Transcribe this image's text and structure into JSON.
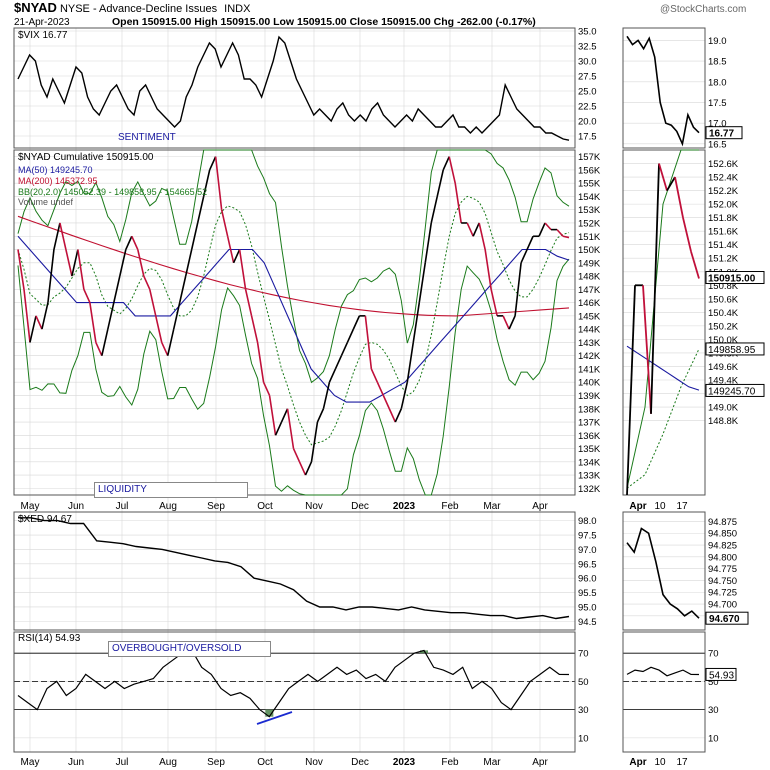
{
  "header": {
    "symbol": "$NYAD",
    "exchange": "NYSE - Advance-Decline Issues",
    "type": "INDX",
    "date": "21-Apr-2023",
    "ohlc": "Open 150915.00  High 150915.00  Low 150915.00  Close 150915.00  Chg -262.00 (-0.17%)",
    "watermark": "@StockCharts.com"
  },
  "colors": {
    "price": "#000000",
    "decline": "#c0103a",
    "ma50": "#1a1aa0",
    "ma200": "#c01030",
    "bb": "#1a7a1a",
    "grid": "#d8d8d8",
    "rsi_fill": "#3d7a3d",
    "trend": "#1a2ad0"
  },
  "labels": {
    "sentiment": "SENTIMENT",
    "liquidity": "LIQUIDITY",
    "overbought": "OVERBOUGHT/OVERSOLD"
  },
  "chart_data": [
    {
      "type": "line",
      "panel": "vix",
      "legend": "$VIX 16.77",
      "last_value": "16.77",
      "ylim": [
        15.5,
        35.5
      ],
      "y_ticks": [
        "35.0",
        "32.5",
        "30.0",
        "27.5",
        "25.0",
        "22.5",
        "20.0",
        "17.5"
      ],
      "values": [
        27,
        29,
        31,
        30,
        26,
        24,
        27,
        25,
        23,
        26,
        29,
        28,
        24,
        22,
        21,
        23,
        25,
        26,
        24,
        22,
        21,
        25,
        26,
        24,
        22,
        21,
        20,
        19,
        20,
        24,
        26,
        29,
        31,
        33,
        32,
        29,
        31,
        33,
        31,
        27,
        27,
        26,
        24,
        27,
        30,
        34,
        33,
        30,
        27,
        25,
        23,
        21,
        22,
        21,
        20,
        22,
        23,
        21,
        20,
        21,
        20,
        22,
        23,
        21,
        20,
        19,
        20,
        21,
        20,
        22,
        21,
        20,
        19,
        19,
        20,
        21,
        19,
        19,
        18,
        19,
        18,
        19,
        20,
        21,
        26,
        24,
        22,
        21,
        20,
        19,
        19,
        18,
        18,
        17.5,
        17,
        16.8
      ]
    },
    {
      "type": "line",
      "panel": "vix_zoom",
      "ylim": [
        16.4,
        19.3
      ],
      "y_ticks": [
        "19.0",
        "18.5",
        "18.0",
        "17.5",
        "17.0",
        "16.5"
      ],
      "last_value": "16.77",
      "values": [
        19.1,
        18.9,
        19.0,
        18.8,
        19.05,
        18.6,
        17.5,
        17.0,
        16.95,
        16.8,
        16.5,
        17.2,
        16.9,
        16.77
      ]
    },
    {
      "type": "line",
      "panel": "nyad",
      "legend": [
        "$NYAD Cumulative 150915.00",
        "MA(50) 149245.70",
        "MA(200) 145372.95",
        "BB(20,2.0) 145052.39 - 149858.95 - 154665.52",
        "Volume undef"
      ],
      "ylim": [
        131500,
        157500
      ],
      "y_ticks": [
        "157K",
        "156K",
        "155K",
        "154K",
        "153K",
        "152K",
        "151K",
        "150K",
        "149K",
        "148K",
        "147K",
        "146K",
        "145K",
        "144K",
        "143K",
        "142K",
        "141K",
        "140K",
        "139K",
        "138K",
        "137K",
        "136K",
        "135K",
        "134K",
        "133K",
        "132K"
      ],
      "x_ticks": [
        "May",
        "Jun",
        "Jul",
        "Aug",
        "Sep",
        "Oct",
        "Nov",
        "Dec",
        "2023",
        "Feb",
        "Mar",
        "Apr"
      ],
      "price": [
        150,
        147,
        143,
        145,
        144,
        146,
        150,
        152,
        150,
        148,
        150,
        147,
        146,
        143,
        142,
        144,
        146,
        148,
        150,
        151,
        150,
        148,
        147,
        145,
        143,
        142,
        144,
        146,
        148,
        150,
        152,
        154,
        156,
        157,
        153,
        151,
        149,
        150,
        147,
        145,
        143,
        140,
        139,
        136,
        137,
        138,
        135,
        134,
        133,
        134,
        137,
        138,
        140,
        141,
        142,
        143,
        144,
        145,
        145,
        141,
        140,
        139,
        138,
        137,
        138,
        140,
        143,
        146,
        149,
        152,
        154,
        156,
        157,
        155,
        152,
        152,
        151,
        152,
        150,
        147,
        145,
        145,
        144,
        145,
        149,
        150,
        151,
        151,
        152,
        151.5,
        151.5,
        151,
        150.9
      ],
      "ma50": [
        151,
        150,
        149,
        148,
        147,
        146,
        146,
        146,
        146,
        146,
        145,
        145,
        145,
        145,
        146,
        147,
        148,
        149,
        150,
        150,
        150,
        149,
        147,
        145,
        143,
        141,
        140,
        139,
        138.5,
        138.5,
        138.5,
        139,
        139.5,
        140,
        141,
        142,
        143,
        144,
        145,
        146,
        147,
        148,
        149,
        150,
        150,
        150,
        149.5,
        149.2
      ]
    },
    {
      "type": "line",
      "panel": "nyad_zoom",
      "ylim": [
        147.7,
        152.8
      ],
      "y_ticks": [
        "152.6K",
        "152.4K",
        "152.2K",
        "152.0K",
        "151.8K",
        "151.6K",
        "151.4K",
        "151.2K",
        "151.0K",
        "150.8K",
        "150.6K",
        "150.4K",
        "150.2K",
        "150.0K",
        "149.8K",
        "149.6K",
        "149.4K",
        "149.2K",
        "149.0K",
        "148.8K"
      ],
      "last_value": "150915.00",
      "tag_bb": "149858.95",
      "tag_ma50": "149245.70",
      "price": [
        147.7,
        150.8,
        150.8,
        148.9,
        152.6,
        152.2,
        152.4,
        151.8,
        151.3,
        150.9
      ],
      "ma50": [
        149.9,
        149.8,
        149.7,
        149.6,
        149.5,
        149.4,
        149.3,
        149.25
      ]
    },
    {
      "type": "line",
      "panel": "xed",
      "legend": "$XED 94.67",
      "ylim": [
        94.2,
        98.3
      ],
      "y_ticks": [
        "98.0",
        "97.5",
        "97.0",
        "96.5",
        "96.0",
        "95.5",
        "95.0",
        "94.5"
      ],
      "values": [
        98.1,
        98.1,
        98.0,
        98.0,
        97.9,
        97.9,
        97.3,
        97.25,
        97.2,
        97.1,
        97.05,
        97.0,
        96.9,
        96.8,
        96.7,
        96.6,
        96.55,
        96.4,
        96.0,
        95.9,
        95.8,
        95.6,
        95.2,
        95.0,
        95.0,
        94.9,
        95.0,
        95.0,
        94.95,
        94.9,
        95.0,
        94.9,
        94.85,
        94.8,
        94.8,
        94.75,
        94.7,
        94.7,
        94.6,
        94.65,
        94.7,
        94.6,
        94.67
      ]
    },
    {
      "type": "line",
      "panel": "xed_zoom",
      "ylim": [
        94.645,
        94.895
      ],
      "y_ticks": [
        "94.875",
        "94.850",
        "94.825",
        "94.800",
        "94.775",
        "94.750",
        "94.725",
        "94.700",
        "94.675"
      ],
      "last_value": "94.670",
      "values": [
        94.83,
        94.81,
        94.86,
        94.85,
        94.79,
        94.72,
        94.7,
        94.69,
        94.675,
        94.685,
        94.67
      ]
    },
    {
      "type": "line",
      "panel": "rsi",
      "legend": "RSI(14) 54.93",
      "last_value": "54.93",
      "ylim": [
        0,
        85
      ],
      "y_ticks": [
        "70",
        "50",
        "30",
        "10"
      ],
      "values": [
        40,
        35,
        30,
        45,
        50,
        40,
        45,
        55,
        50,
        45,
        50,
        45,
        48,
        50,
        52,
        60,
        65,
        70,
        72,
        60,
        55,
        45,
        40,
        42,
        38,
        30,
        25,
        35,
        45,
        50,
        55,
        50,
        55,
        60,
        55,
        58,
        52,
        55,
        50,
        60,
        65,
        70,
        72,
        60,
        58,
        55,
        60,
        45,
        50,
        45,
        35,
        30,
        40,
        50,
        55,
        60,
        55,
        54.93
      ]
    },
    {
      "type": "line",
      "panel": "rsi_zoom",
      "ylim": [
        0,
        85
      ],
      "y_ticks": [
        "70",
        "50",
        "30",
        "10"
      ],
      "last_value": "54.93",
      "values": [
        55,
        58,
        57,
        60,
        58,
        54,
        56,
        58,
        55,
        54.93
      ]
    },
    {
      "type": "line",
      "panel": "zoom_axis",
      "x_ticks": [
        "Apr",
        "10",
        "17"
      ]
    }
  ]
}
